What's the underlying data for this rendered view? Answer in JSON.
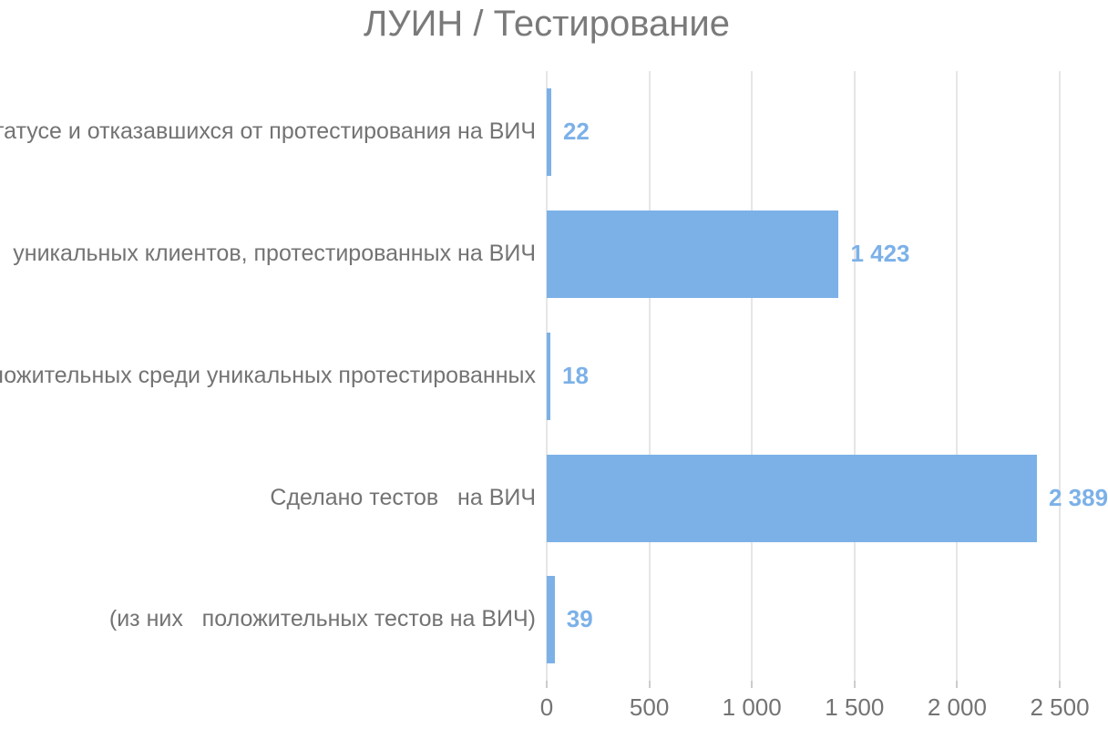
{
  "title": "ЛУИН / Тестирование",
  "chart_data": {
    "type": "bar",
    "orientation": "horizontal",
    "title": "ЛУИН / Тестирование",
    "categories": [
      "татусе и отказавшихся от протестирования на ВИЧ",
      "уникальных клиентов, протестированных на ВИЧ",
      "ложительных среди уникальных протестированных",
      "Сделано тестов   на ВИЧ",
      "(из них   положительных тестов на ВИЧ)"
    ],
    "values": [
      22,
      1423,
      18,
      2389,
      39
    ],
    "value_labels": [
      "22",
      "1 423",
      "18",
      "2 389",
      "39"
    ],
    "x_ticks": [
      "0",
      "500",
      "1 000",
      "1 500",
      "2 000",
      "2 500"
    ],
    "xlim": [
      0,
      2500
    ],
    "grid": "vertical",
    "legend": "none",
    "colors": {
      "bar": "#7cb1e8",
      "value_label": "#7cb1e8",
      "title_text": "#7a7a7a",
      "axis_text": "#737373",
      "gridline": "#e6e6e6"
    }
  }
}
